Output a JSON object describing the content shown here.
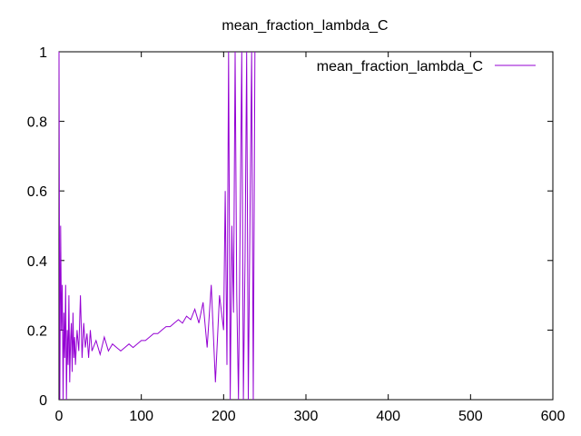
{
  "chart_data": {
    "type": "line",
    "title": "mean_fraction_lambda_C",
    "xlabel": "",
    "ylabel": "",
    "xlim": [
      0,
      600
    ],
    "ylim": [
      0,
      1
    ],
    "x_ticks": [
      0,
      100,
      200,
      300,
      400,
      500,
      600
    ],
    "y_ticks": [
      0,
      0.2,
      0.4,
      0.6,
      0.8,
      1
    ],
    "y_tick_labels": [
      "0",
      "0.2",
      "0.4",
      "0.6",
      "0.8",
      "1"
    ],
    "x_tick_labels": [
      "0",
      "100",
      "200",
      "300",
      "400",
      "500",
      "600"
    ],
    "grid": false,
    "legend_position": "top-right",
    "color": "#9400d3",
    "series": [
      {
        "name": "mean_fraction_lambda_C",
        "description_points": "approximate envelope of a noisy series",
        "x": [
          0,
          1,
          2,
          3,
          4,
          5,
          6,
          7,
          8,
          9,
          10,
          11,
          12,
          13,
          14,
          15,
          16,
          17,
          18,
          19,
          20,
          22,
          24,
          26,
          28,
          30,
          32,
          34,
          36,
          38,
          40,
          45,
          50,
          55,
          60,
          65,
          70,
          75,
          80,
          85,
          90,
          95,
          100,
          105,
          110,
          115,
          120,
          125,
          130,
          135,
          140,
          145,
          150,
          155,
          160,
          165,
          170,
          175,
          180,
          185,
          190,
          195,
          200,
          202,
          204,
          206,
          208,
          210,
          212,
          214,
          216,
          218,
          220,
          222,
          224,
          226,
          228,
          230,
          232,
          234,
          236,
          238
        ],
        "y": [
          1,
          0,
          0.5,
          0.2,
          0.33,
          0,
          0.25,
          0.12,
          0.33,
          0,
          0.2,
          0.1,
          0.3,
          0.05,
          0.17,
          0.22,
          0.08,
          0.25,
          0.12,
          0.18,
          0.1,
          0.2,
          0.14,
          0.3,
          0.12,
          0.22,
          0.15,
          0.19,
          0.12,
          0.2,
          0.14,
          0.17,
          0.13,
          0.18,
          0.14,
          0.16,
          0.15,
          0.14,
          0.15,
          0.16,
          0.15,
          0.16,
          0.17,
          0.17,
          0.18,
          0.19,
          0.19,
          0.2,
          0.21,
          0.21,
          0.22,
          0.23,
          0.22,
          0.24,
          0.23,
          0.26,
          0.22,
          0.28,
          0.15,
          0.33,
          0.05,
          0.3,
          0.2,
          0.6,
          0.1,
          1,
          0,
          0.5,
          0.25,
          1,
          0.3,
          0,
          0.5,
          1,
          0,
          0.4,
          1,
          0,
          0.5,
          1,
          0,
          1
        ]
      }
    ]
  }
}
